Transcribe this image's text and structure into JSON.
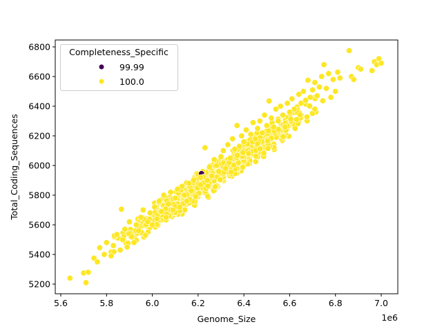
{
  "chart_data": {
    "type": "scatter",
    "title": "",
    "xlabel": "Genome_Size",
    "ylabel": "Total_Coding_Sequences",
    "x_offset_label": "1e6",
    "xlim": [
      5.575,
      7.075
    ],
    "ylim": [
      5140,
      6840
    ],
    "x_ticks": [
      5.6,
      5.8,
      6.0,
      6.2,
      6.4,
      6.6,
      6.8,
      7.0
    ],
    "x_tick_labels": [
      "5.6",
      "5.8",
      "6.0",
      "6.2",
      "6.4",
      "6.6",
      "6.8",
      "7.0"
    ],
    "y_ticks": [
      5200,
      5400,
      5600,
      5800,
      6000,
      6200,
      6400,
      6600,
      6800
    ],
    "y_tick_labels": [
      "5200",
      "5400",
      "5600",
      "5800",
      "6000",
      "6200",
      "6400",
      "6600",
      "6800"
    ],
    "grid": false,
    "legend": {
      "title": "Completeness_Specific",
      "position": "upper left",
      "entries": [
        {
          "label": "99.99",
          "color": "#440154"
        },
        {
          "label": "100.0",
          "color": "#fde725"
        }
      ]
    },
    "trend": {
      "x_start": 5.64,
      "y_start": 5240,
      "x_end": 7.0,
      "y_end": 6720
    },
    "series": [
      {
        "name": "99.99",
        "color": "#440154",
        "points": [
          [
            6.215,
            5945
          ]
        ]
      },
      {
        "name": "100.0",
        "color": "#fde725",
        "points": [
          [
            5.64,
            5240
          ],
          [
            5.7,
            5275
          ],
          [
            5.71,
            5210
          ],
          [
            5.72,
            5280
          ],
          [
            5.745,
            5375
          ],
          [
            5.76,
            5350
          ],
          [
            5.77,
            5445
          ],
          [
            5.79,
            5400
          ],
          [
            5.8,
            5480
          ],
          [
            5.82,
            5390
          ],
          [
            5.83,
            5460
          ],
          [
            5.845,
            5535
          ],
          [
            5.86,
            5430
          ],
          [
            5.865,
            5705
          ],
          [
            5.87,
            5500
          ],
          [
            5.88,
            5570
          ],
          [
            5.89,
            5450
          ],
          [
            5.9,
            5620
          ],
          [
            5.91,
            5520
          ],
          [
            5.92,
            5480
          ],
          [
            5.93,
            5600
          ],
          [
            5.94,
            5560
          ],
          [
            5.95,
            5650
          ],
          [
            5.96,
            5700
          ],
          [
            5.97,
            5530
          ],
          [
            5.98,
            5620
          ],
          [
            5.99,
            5680
          ],
          [
            6.0,
            5600
          ],
          [
            6.01,
            5720
          ],
          [
            6.02,
            5640
          ],
          [
            6.03,
            5760
          ],
          [
            6.04,
            5690
          ],
          [
            6.05,
            5800
          ],
          [
            6.06,
            5650
          ],
          [
            6.07,
            5740
          ],
          [
            6.08,
            5820
          ],
          [
            6.09,
            5700
          ],
          [
            6.1,
            5780
          ],
          [
            6.11,
            5840
          ],
          [
            6.12,
            5720
          ],
          [
            6.13,
            5860
          ],
          [
            6.14,
            5800
          ],
          [
            6.15,
            5760
          ],
          [
            6.16,
            5880
          ],
          [
            6.17,
            5830
          ],
          [
            6.18,
            5900
          ],
          [
            6.19,
            5790
          ],
          [
            6.2,
            5940
          ],
          [
            6.21,
            5870
          ],
          [
            6.22,
            5960
          ],
          [
            6.23,
            6120
          ],
          [
            6.24,
            5900
          ],
          [
            6.25,
            5990
          ],
          [
            6.26,
            5930
          ],
          [
            6.27,
            6040
          ],
          [
            6.28,
            6000
          ],
          [
            6.29,
            5960
          ],
          [
            6.3,
            6060
          ],
          [
            6.31,
            6100
          ],
          [
            6.32,
            5980
          ],
          [
            6.33,
            6140
          ],
          [
            6.34,
            6050
          ],
          [
            6.35,
            6180
          ],
          [
            6.36,
            6110
          ],
          [
            6.37,
            6270
          ],
          [
            6.38,
            6130
          ],
          [
            6.39,
            6200
          ],
          [
            6.4,
            6160
          ],
          [
            6.41,
            6240
          ],
          [
            6.42,
            6080
          ],
          [
            6.43,
            6210
          ],
          [
            6.44,
            6290
          ],
          [
            6.45,
            6180
          ],
          [
            6.46,
            6250
          ],
          [
            6.47,
            6300
          ],
          [
            6.48,
            6220
          ],
          [
            6.49,
            6340
          ],
          [
            6.5,
            6270
          ],
          [
            6.51,
            6435
          ],
          [
            6.52,
            6320
          ],
          [
            6.53,
            6260
          ],
          [
            6.54,
            6380
          ],
          [
            6.55,
            6300
          ],
          [
            6.56,
            6400
          ],
          [
            6.57,
            6340
          ],
          [
            6.58,
            6260
          ],
          [
            6.59,
            6420
          ],
          [
            6.6,
            6360
          ],
          [
            6.61,
            6450
          ],
          [
            6.62,
            6380
          ],
          [
            6.63,
            6310
          ],
          [
            6.64,
            6480
          ],
          [
            6.65,
            6420
          ],
          [
            6.66,
            6500
          ],
          [
            6.67,
            6440
          ],
          [
            6.68,
            6575
          ],
          [
            6.69,
            6460
          ],
          [
            6.7,
            6510
          ],
          [
            6.71,
            6560
          ],
          [
            6.72,
            6470
          ],
          [
            6.73,
            6530
          ],
          [
            6.74,
            6600
          ],
          [
            6.75,
            6680
          ],
          [
            6.76,
            6520
          ],
          [
            6.77,
            6620
          ],
          [
            6.78,
            6460
          ],
          [
            6.79,
            6580
          ],
          [
            6.8,
            6500
          ],
          [
            6.81,
            6630
          ],
          [
            6.82,
            6590
          ],
          [
            6.86,
            6775
          ],
          [
            6.87,
            6600
          ],
          [
            6.88,
            6580
          ],
          [
            6.9,
            6660
          ],
          [
            6.91,
            6650
          ],
          [
            6.96,
            6640
          ],
          [
            6.97,
            6700
          ],
          [
            6.98,
            6680
          ],
          [
            6.99,
            6720
          ],
          [
            7.0,
            6690
          ]
        ]
      }
    ]
  }
}
